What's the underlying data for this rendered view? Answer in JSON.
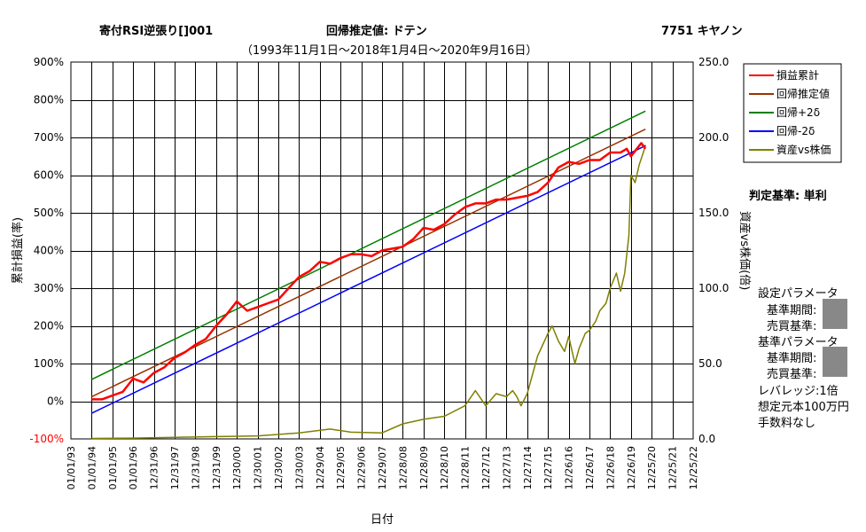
{
  "header": {
    "strategy": "寄付RSI逆張り[]001",
    "estimate": "回帰推定値: ドテン",
    "period": "（1993年11月1日～2018年1月4日～2020年9月16日）",
    "ticker": "7751 キヤノン"
  },
  "side_panel": {
    "criterion": "判定基準: 単利",
    "set_params": "設定パラメータ",
    "base_period_1": "基準期間:",
    "trade_basis_1": "売買基準:",
    "base_params": "基準パラメータ",
    "base_period_2": "基準期間:",
    "trade_basis_2": "売買基準:",
    "leverage": "レバレッジ:1倍",
    "capital": "想定元本100万円",
    "fee": "手数料なし"
  },
  "chart_data": {
    "type": "line",
    "xlabel": "日付",
    "ylabel_left": "累計損益(率)",
    "ylabel_right": "資産vs株価(倍)",
    "x_ticks": [
      "01/01/93",
      "01/01/94",
      "01/01/95",
      "01/01/96",
      "12/31/96",
      "12/31/97",
      "12/31/98",
      "12/31/99",
      "12/30/00",
      "12/30/01",
      "12/30/02",
      "12/30/03",
      "12/29/04",
      "12/29/05",
      "12/29/06",
      "12/29/07",
      "12/28/08",
      "12/28/09",
      "12/28/10",
      "12/28/11",
      "12/27/12",
      "12/27/13",
      "12/27/14",
      "12/27/15",
      "12/26/16",
      "12/26/17",
      "12/26/18",
      "12/26/19",
      "12/25/20",
      "12/25/21",
      "12/25/22"
    ],
    "ylim_left": [
      -100,
      900
    ],
    "y_ticks_left": [
      "-100%",
      "0%",
      "100%",
      "200%",
      "300%",
      "400%",
      "500%",
      "600%",
      "700%",
      "800%",
      "900%"
    ],
    "ylim_right": [
      0,
      250
    ],
    "y_ticks_right": [
      "0.0",
      "50.0",
      "100.0",
      "150.0",
      "200.0",
      "250.0"
    ],
    "grid": true,
    "legend_position": "top-right",
    "series": [
      {
        "name": "損益累計",
        "color": "#ff0000",
        "axis": "left",
        "x": [
          1994.0,
          1994.5,
          1995.0,
          1995.5,
          1996.0,
          1996.5,
          1997.0,
          1997.5,
          1998.0,
          1998.5,
          1999.0,
          1999.5,
          2000.0,
          2000.5,
          2001.0,
          2001.5,
          2002.0,
          2002.5,
          2003.0,
          2003.5,
          2004.0,
          2004.5,
          2005.0,
          2005.5,
          2006.0,
          2006.5,
          2007.0,
          2007.5,
          2008.0,
          2008.5,
          2009.0,
          2009.5,
          2010.0,
          2010.5,
          2011.0,
          2011.5,
          2012.0,
          2012.5,
          2013.0,
          2013.5,
          2014.0,
          2014.5,
          2015.0,
          2015.5,
          2016.0,
          2016.5,
          2017.0,
          2017.5,
          2018.0,
          2018.5,
          2019.0,
          2019.5,
          2019.8,
          2020.0,
          2020.5,
          2020.7
        ],
        "y": [
          5,
          5,
          15,
          25,
          60,
          50,
          75,
          90,
          115,
          130,
          150,
          165,
          200,
          230,
          265,
          240,
          250,
          260,
          270,
          300,
          330,
          345,
          370,
          365,
          380,
          390,
          390,
          385,
          400,
          405,
          410,
          430,
          460,
          455,
          470,
          495,
          515,
          525,
          525,
          535,
          535,
          540,
          545,
          555,
          580,
          620,
          635,
          630,
          640,
          640,
          660,
          660,
          670,
          650,
          685,
          670
        ]
      },
      {
        "name": "回帰推定値",
        "color": "#993300",
        "axis": "left",
        "x": [
          1994.0,
          2020.7
        ],
        "y": [
          12,
          722
        ]
      },
      {
        "name": "回帰+2δ",
        "color": "#008000",
        "axis": "left",
        "x": [
          1994.0,
          2020.7
        ],
        "y": [
          58,
          770
        ]
      },
      {
        "name": "回帰-2δ",
        "color": "#0000ff",
        "axis": "left",
        "x": [
          1994.0,
          2020.7
        ],
        "y": [
          -32,
          678
        ]
      },
      {
        "name": "資産vs株価",
        "color": "#808000",
        "axis": "right",
        "x": [
          1994.0,
          1996.0,
          1998.0,
          2000.0,
          2002.0,
          2004.0,
          2005.5,
          2006.5,
          2008.0,
          2009.0,
          2010.0,
          2011.0,
          2012.0,
          2012.5,
          2013.0,
          2013.5,
          2014.0,
          2014.3,
          2014.5,
          2014.7,
          2015.0,
          2015.5,
          2016.0,
          2016.2,
          2016.5,
          2016.8,
          2017.0,
          2017.3,
          2017.5,
          2017.8,
          2018.0,
          2018.3,
          2018.5,
          2018.8,
          2019.0,
          2019.3,
          2019.5,
          2019.7,
          2019.9,
          2020.0,
          2020.2,
          2020.4,
          2020.6,
          2020.7
        ],
        "y": [
          0.3,
          0.5,
          1.0,
          1.5,
          2.0,
          4.0,
          6.5,
          4.5,
          4.0,
          10.0,
          13.0,
          15.0,
          22.0,
          32.0,
          22.0,
          30.0,
          28.0,
          32.0,
          28.0,
          22.0,
          30.0,
          55.0,
          70.0,
          75.0,
          65.0,
          58.0,
          68.0,
          50.0,
          60.0,
          70.0,
          72.0,
          78.0,
          85.0,
          90.0,
          100.0,
          110.0,
          98.0,
          110.0,
          135.0,
          175.0,
          170.0,
          182.0,
          190.0,
          195.0
        ]
      }
    ]
  }
}
